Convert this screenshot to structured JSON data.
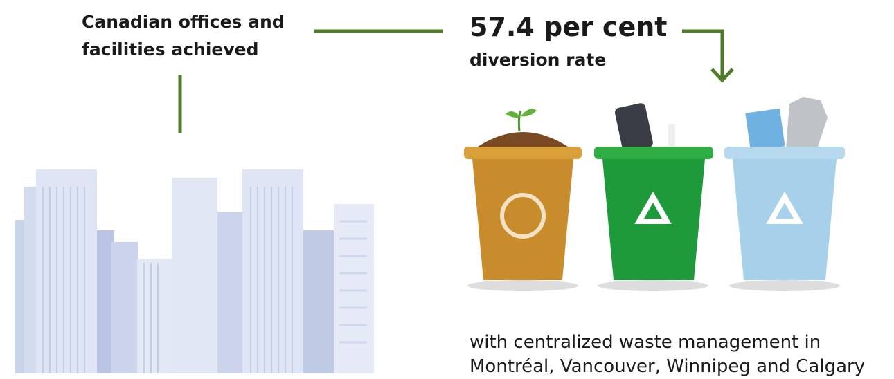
{
  "heading": {
    "lines": [
      "Canadian offices and",
      "facilities achieved"
    ]
  },
  "stat": {
    "value": "57.4 per cent",
    "label": "diversion rate"
  },
  "description": {
    "lines": [
      "with centralized waste management in",
      "Montréal, Vancouver, Winnipeg and Calgary"
    ]
  }
}
